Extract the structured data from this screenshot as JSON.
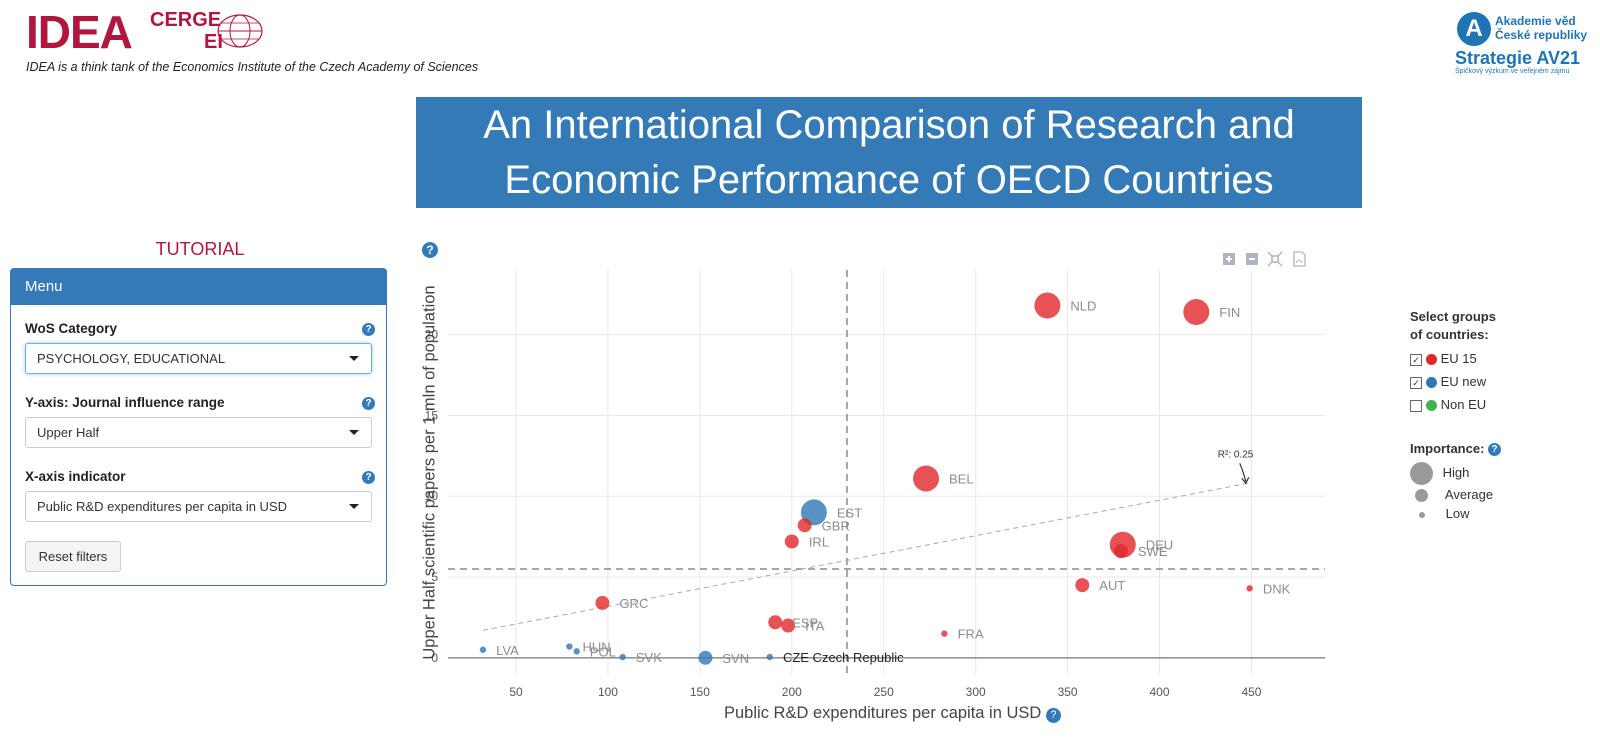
{
  "header": {
    "logo_idea": "IDEA",
    "logo_cerge": "CERGE",
    "logo_ei": "EI",
    "tagline": "IDEA is a think tank of the Economics Institute of the Czech Academy of Sciences",
    "av_line1": "Akademie věd",
    "av_line2": "České republiky",
    "av_line3": "Strategie AV21",
    "av_line4": "Špičkový výzkum ve veřejném zájmu"
  },
  "banner": {
    "line1": "An International Comparison of Research and",
    "line2": "Economic Performance of OECD Countries"
  },
  "sidebar": {
    "tutorial": "TUTORIAL",
    "menu_title": "Menu",
    "wos_label": "WoS Category",
    "wos_value": "PSYCHOLOGY, EDUCATIONAL",
    "y_label": "Y-axis: Journal influence range",
    "y_value": "Upper Half",
    "x_label": "X-axis indicator",
    "x_value": "Public R&D expenditures per capita in USD",
    "reset_label": "Reset filters"
  },
  "legend": {
    "groups_title_1": "Select groups",
    "groups_title_2": "of countries:",
    "groups": [
      {
        "label": "EU 15",
        "color": "#e0272a",
        "checked": true
      },
      {
        "label": "EU new",
        "color": "#2f78b5",
        "checked": true
      },
      {
        "label": "Non EU",
        "color": "#3fb34f",
        "checked": false
      }
    ],
    "importance_title": "Importance:",
    "importance": [
      {
        "label": "High"
      },
      {
        "label": "Average"
      },
      {
        "label": "Low"
      }
    ]
  },
  "chart_data": {
    "type": "scatter",
    "title": "",
    "xlabel": "Public R&D expenditures per capita in USD",
    "ylabel": "Upper Half scientific papers per 1 mln of population",
    "xlim": [
      13,
      490
    ],
    "ylim": [
      -1,
      24
    ],
    "xticks": [
      50,
      100,
      150,
      200,
      250,
      300,
      350,
      400,
      450
    ],
    "yticks": [
      0,
      5,
      10,
      15,
      20
    ],
    "x_mean": 230,
    "y_mean": 5.5,
    "trend": {
      "x0": 32,
      "y0": 1.7,
      "x1": 448,
      "y1": 10.8,
      "r2_label": "R²: 0.25"
    },
    "colors": {
      "EU 15": "#e0272a",
      "EU new": "#2f78b5"
    },
    "points": [
      {
        "label": "NLD",
        "x": 339,
        "y": 21.8,
        "group": "EU 15",
        "importance": "High"
      },
      {
        "label": "FIN",
        "x": 420,
        "y": 21.4,
        "group": "EU 15",
        "importance": "High"
      },
      {
        "label": "BEL",
        "x": 273,
        "y": 11.1,
        "group": "EU 15",
        "importance": "High"
      },
      {
        "label": "EST",
        "x": 212,
        "y": 9.0,
        "group": "EU new",
        "importance": "High"
      },
      {
        "label": "GBR",
        "x": 207,
        "y": 8.2,
        "group": "EU 15",
        "importance": "Average"
      },
      {
        "label": "IRL",
        "x": 200,
        "y": 7.2,
        "group": "EU 15",
        "importance": "Average"
      },
      {
        "label": "DEU",
        "x": 380,
        "y": 7.0,
        "group": "EU 15",
        "importance": "High"
      },
      {
        "label": "SWE",
        "x": 379,
        "y": 6.6,
        "group": "EU 15",
        "importance": "Average"
      },
      {
        "label": "AUT",
        "x": 358,
        "y": 4.5,
        "group": "EU 15",
        "importance": "Average"
      },
      {
        "label": "DNK",
        "x": 449,
        "y": 4.3,
        "group": "EU 15",
        "importance": "Low"
      },
      {
        "label": "GRC",
        "x": 97,
        "y": 3.4,
        "group": "EU 15",
        "importance": "Average"
      },
      {
        "label": "ESP",
        "x": 191,
        "y": 2.2,
        "group": "EU 15",
        "importance": "Average"
      },
      {
        "label": "ITA",
        "x": 198,
        "y": 2.0,
        "group": "EU 15",
        "importance": "Average"
      },
      {
        "label": "FRA",
        "x": 283,
        "y": 1.5,
        "group": "EU 15",
        "importance": "Low"
      },
      {
        "label": "LVA",
        "x": 32,
        "y": 0.5,
        "group": "EU new",
        "importance": "Low"
      },
      {
        "label": "HUN",
        "x": 79,
        "y": 0.7,
        "group": "EU new",
        "importance": "Low"
      },
      {
        "label": "POL",
        "x": 83,
        "y": 0.4,
        "group": "EU new",
        "importance": "Low"
      },
      {
        "label": "SVK",
        "x": 108,
        "y": 0.05,
        "group": "EU new",
        "importance": "Low"
      },
      {
        "label": "SVN",
        "x": 153,
        "y": 0.0,
        "group": "EU new",
        "importance": "Average"
      },
      {
        "label": "CZE Czech Republic",
        "x": 188,
        "y": 0.05,
        "group": "EU new",
        "importance": "Low",
        "highlight": true
      }
    ]
  }
}
